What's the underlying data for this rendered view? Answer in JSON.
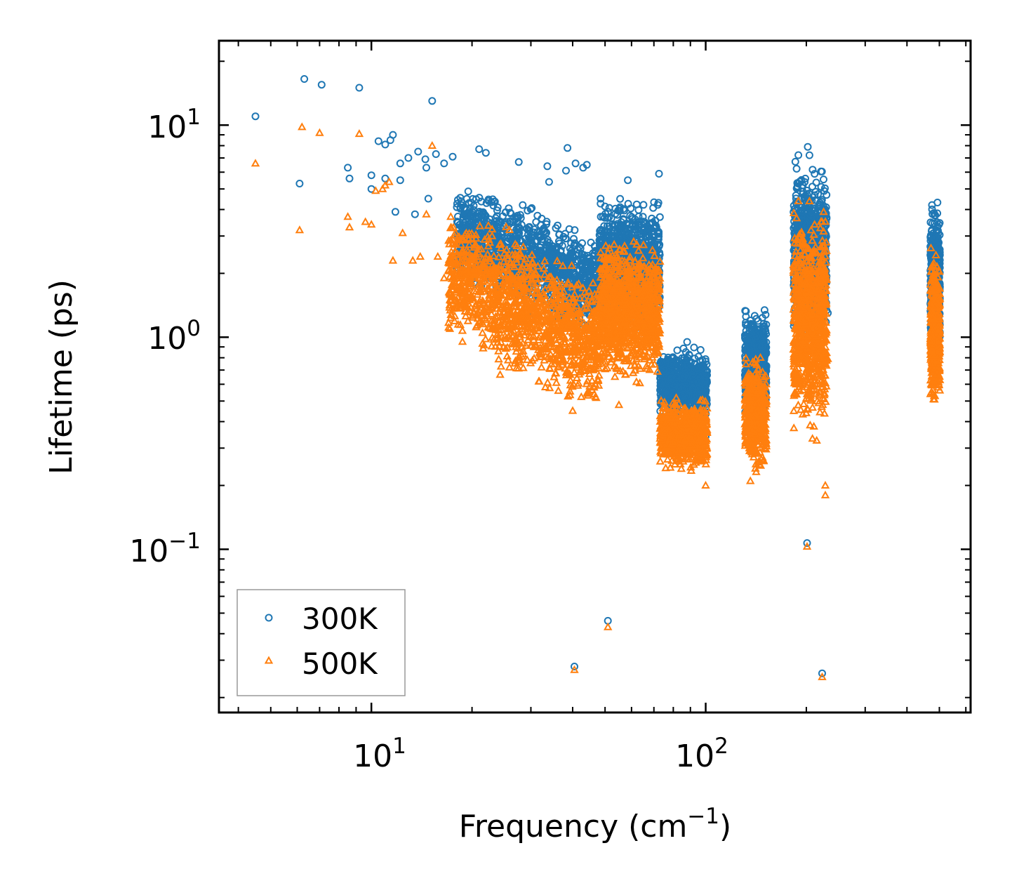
{
  "chart_data": {
    "type": "scatter",
    "title": "",
    "xlabel": "Frequency (cm",
    "xlabel_sup": "−1",
    "xlabel_end": ")",
    "ylabel": "Lifetime (ps)",
    "xscale": "log",
    "yscale": "log",
    "xlim": [
      3.5,
      620
    ],
    "ylim": [
      0.017,
      25
    ],
    "x_ticks": [
      {
        "value": 10,
        "base": "10",
        "exp": "1"
      },
      {
        "value": 100,
        "base": "10",
        "exp": "2"
      }
    ],
    "y_ticks": [
      {
        "value": 10,
        "base": "10",
        "exp": "1"
      },
      {
        "value": 1,
        "base": "10",
        "exp": "0"
      },
      {
        "value": 0.1,
        "base": "10",
        "exp": "−1"
      }
    ],
    "legend_position": "lower-left",
    "series": [
      {
        "name": "300K",
        "marker": "circle-open",
        "color": "#1f77b4",
        "points": [
          [
            4.5,
            11.0
          ],
          [
            6.3,
            16.5
          ],
          [
            7.1,
            15.5
          ],
          [
            9.2,
            15.0
          ],
          [
            15.2,
            13.0
          ],
          [
            6.1,
            5.3
          ],
          [
            8.5,
            6.3
          ],
          [
            8.6,
            5.6
          ],
          [
            10.0,
            5.8
          ],
          [
            10.0,
            5.0
          ],
          [
            10.5,
            8.4
          ],
          [
            11.0,
            8.1
          ],
          [
            11.4,
            8.5
          ],
          [
            11.6,
            9.0
          ],
          [
            12.2,
            6.6
          ],
          [
            12.9,
            7.0
          ],
          [
            13.8,
            7.5
          ],
          [
            14.5,
            6.9
          ],
          [
            14.6,
            6.3
          ],
          [
            15.6,
            7.3
          ],
          [
            16.5,
            6.6
          ],
          [
            17.5,
            7.1
          ],
          [
            11.0,
            5.6
          ],
          [
            11.8,
            3.9
          ],
          [
            12.2,
            5.5
          ],
          [
            13.5,
            3.8
          ],
          [
            14.8,
            4.5
          ],
          [
            21.0,
            7.7
          ],
          [
            22.0,
            7.4
          ],
          [
            27.6,
            6.7
          ],
          [
            33.6,
            6.4
          ],
          [
            38.6,
            7.8
          ],
          [
            34.0,
            5.4
          ],
          [
            38.2,
            6.1
          ],
          [
            40.8,
            6.6
          ],
          [
            43.0,
            6.3
          ],
          [
            44.1,
            6.5
          ],
          [
            48.5,
            4.5
          ],
          [
            58.5,
            5.5
          ],
          [
            72.5,
            5.9
          ],
          [
            202.0,
            7.9
          ],
          [
            201.0,
            0.107
          ],
          [
            51.0,
            0.046
          ],
          [
            40.5,
            0.028
          ],
          [
            223.0,
            0.026
          ],
          [
            232.0,
            1.3
          ],
          [
            88.0,
            0.95
          ],
          [
            100.0,
            0.34
          ]
        ],
        "clusters": [
          {
            "f": [
              18,
              48
            ],
            "lmin": 1.2,
            "lmax": 4.5,
            "slope": -0.6,
            "n": 1200
          },
          {
            "f": [
              48,
              73
            ],
            "lmin": 1.0,
            "lmax": 5.0,
            "slope": 0,
            "n": 1000
          },
          {
            "f": [
              73,
              101
            ],
            "lmin": 0.38,
            "lmax": 0.95,
            "slope": 0,
            "n": 700
          },
          {
            "f": [
              131,
              152
            ],
            "lmin": 0.4,
            "lmax": 1.45,
            "slope": 0,
            "n": 500
          },
          {
            "f": [
              183,
              230
            ],
            "lmin": 0.85,
            "lmax": 7.5,
            "slope": 0,
            "n": 900
          },
          {
            "f": [
              470,
              502
            ],
            "lmin": 0.7,
            "lmax": 4.8,
            "slope": 0,
            "n": 450
          }
        ]
      },
      {
        "name": "500K",
        "marker": "triangle-open",
        "color": "#ff7f0e",
        "points": [
          [
            4.5,
            6.6
          ],
          [
            6.2,
            9.8
          ],
          [
            7.0,
            9.2
          ],
          [
            9.2,
            9.1
          ],
          [
            15.2,
            8.0
          ],
          [
            6.1,
            3.2
          ],
          [
            8.5,
            3.7
          ],
          [
            8.6,
            3.3
          ],
          [
            9.6,
            3.5
          ],
          [
            10.0,
            3.4
          ],
          [
            10.3,
            4.9
          ],
          [
            10.8,
            5.0
          ],
          [
            11.0,
            5.2
          ],
          [
            11.3,
            5.4
          ],
          [
            11.6,
            2.3
          ],
          [
            12.4,
            3.1
          ],
          [
            13.3,
            2.3
          ],
          [
            14.0,
            2.4
          ],
          [
            14.6,
            3.8
          ],
          [
            15.8,
            2.4
          ],
          [
            16.5,
            1.9
          ],
          [
            18.0,
            1.9
          ],
          [
            19.6,
            1.6
          ],
          [
            18.6,
            2.9
          ],
          [
            21.0,
            2.6
          ],
          [
            22.0,
            2.0
          ],
          [
            23.0,
            1.6
          ],
          [
            201.0,
            0.103
          ],
          [
            51.0,
            0.043
          ],
          [
            40.5,
            0.027
          ],
          [
            223.0,
            0.025
          ],
          [
            228.0,
            0.18
          ],
          [
            228.0,
            0.2
          ],
          [
            40.0,
            0.45
          ],
          [
            55.0,
            0.48
          ],
          [
            100.0,
            0.2
          ],
          [
            136.0,
            0.21
          ],
          [
            232.0,
            0.79
          ]
        ],
        "clusters": [
          {
            "f": [
              17,
              48
            ],
            "lmin": 0.55,
            "lmax": 3.3,
            "slope": -0.8,
            "n": 1300
          },
          {
            "f": [
              48,
              73
            ],
            "lmin": 0.55,
            "lmax": 3.3,
            "slope": 0,
            "n": 1000
          },
          {
            "f": [
              73,
              101
            ],
            "lmin": 0.22,
            "lmax": 0.55,
            "slope": 0,
            "n": 700
          },
          {
            "f": [
              131,
              152
            ],
            "lmin": 0.21,
            "lmax": 0.88,
            "slope": 0,
            "n": 500
          },
          {
            "f": [
              183,
              230
            ],
            "lmin": 0.3,
            "lmax": 4.6,
            "slope": 0,
            "n": 900
          },
          {
            "f": [
              470,
              502
            ],
            "lmin": 0.42,
            "lmax": 2.9,
            "slope": 0,
            "n": 450
          }
        ]
      }
    ]
  }
}
